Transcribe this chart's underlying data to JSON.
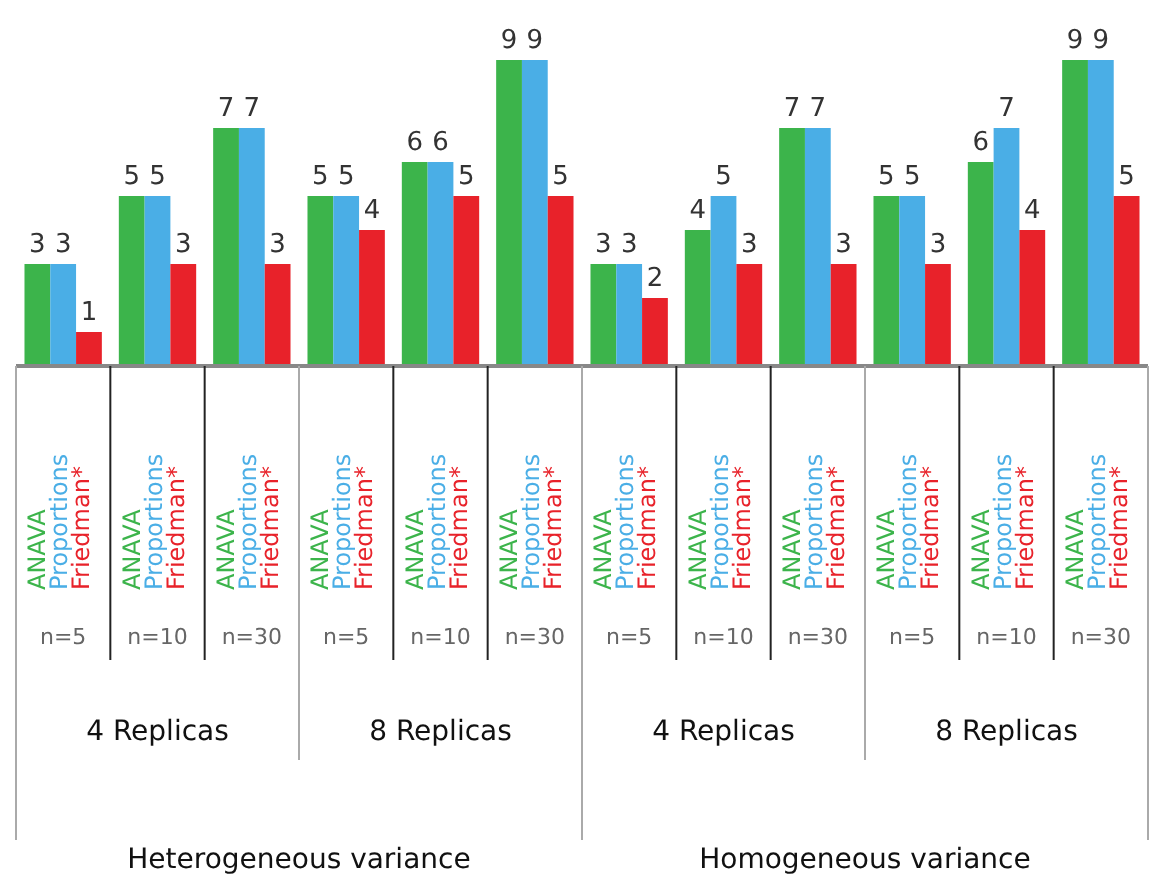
{
  "chart_data": {
    "type": "bar",
    "categories": [
      "n=5",
      "n=10",
      "n=30",
      "n=5",
      "n=10",
      "n=30",
      "n=5",
      "n=10",
      "n=30",
      "n=5",
      "n=10",
      "n=30"
    ],
    "series": [
      {
        "name": "ANAVA",
        "color": "#3cb44b",
        "values": [
          3,
          5,
          7,
          5,
          6,
          9,
          3,
          4,
          7,
          5,
          6,
          9
        ]
      },
      {
        "name": "Proportions",
        "color": "#4aaee6",
        "values": [
          3,
          5,
          7,
          5,
          6,
          9,
          3,
          5,
          7,
          5,
          7,
          9
        ]
      },
      {
        "name": "Friedman*",
        "color": "#e8222a",
        "values": [
          1,
          3,
          3,
          4,
          5,
          5,
          2,
          3,
          3,
          3,
          4,
          5
        ]
      }
    ],
    "data_labels": true,
    "annotations": [
      "4 Replicas",
      "8 Replicas",
      "4 Replicas",
      "8 Replicas",
      "Heterogeneous variance",
      "Homogeneous variance"
    ]
  }
}
